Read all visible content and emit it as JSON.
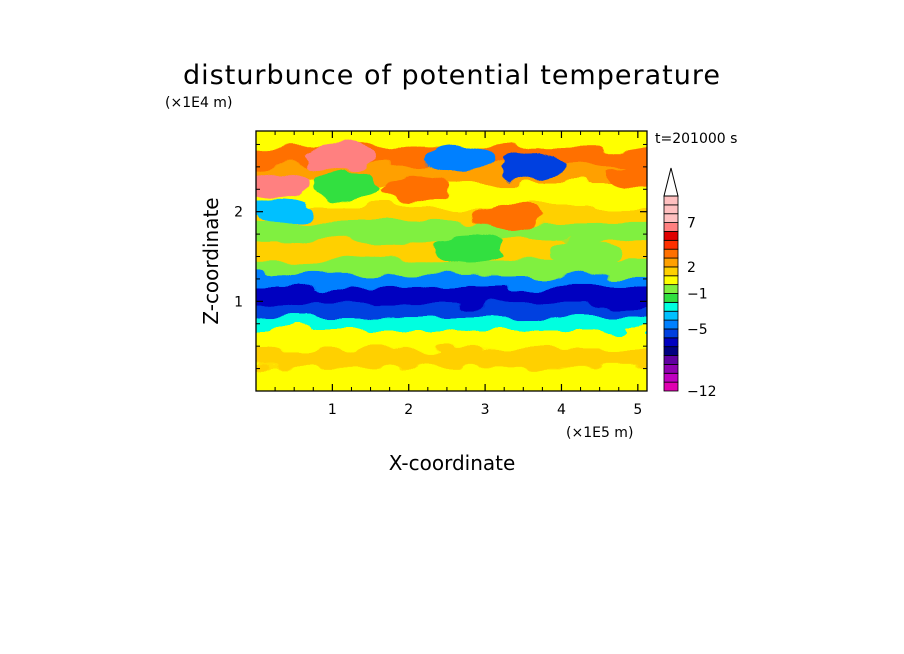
{
  "chart_data": {
    "type": "heatmap",
    "title": "disturbunce of potential temperature",
    "annotation": "t=201000 s",
    "xlabel": "X-coordinate",
    "ylabel": "Z-coordinate",
    "x_unit": "(x1E5 m)",
    "y_unit": "(x1E4 m)",
    "xlim": [
      0,
      5.12
    ],
    "ylim": [
      0,
      2.9
    ],
    "xticks": [
      "1",
      "2",
      "3",
      "4",
      "5"
    ],
    "xtick_values": [
      1,
      2,
      3,
      4,
      5
    ],
    "yticks": [
      "1",
      "2"
    ],
    "ytick_values": [
      1,
      2
    ],
    "colorbar": {
      "levels": [
        -12,
        -11,
        -10,
        -9,
        -8,
        -7,
        -6,
        -5,
        -4,
        -3,
        -2,
        -1,
        0,
        1,
        2,
        3,
        4,
        5,
        6,
        7,
        8,
        9,
        10
      ],
      "labels": [
        "-12",
        "-5",
        "-1",
        "2",
        "7"
      ],
      "label_values": [
        -12,
        -5,
        -1,
        2,
        7
      ],
      "extend": "max",
      "colors": [
        "#e000b0",
        "#c000c0",
        "#9000b0",
        "#6000a0",
        "#000080",
        "#0000c0",
        "#0040e0",
        "#0080ff",
        "#00c0ff",
        "#00ffe0",
        "#30e040",
        "#80f040",
        "#ffff00",
        "#ffd000",
        "#ffa000",
        "#ff7000",
        "#ff3000",
        "#e00000",
        "#ff8080",
        "#ffc0c0"
      ]
    },
    "field_bands": [
      {
        "z": 0.05,
        "value": 0.2
      },
      {
        "z": 0.2,
        "value": 0.5
      },
      {
        "z": 0.4,
        "value": 1.2
      },
      {
        "z": 0.6,
        "value": 0.3
      },
      {
        "z": 0.8,
        "value": -2.5
      },
      {
        "z": 0.95,
        "value": -5.5
      },
      {
        "z": 1.1,
        "value": -6.5
      },
      {
        "z": 1.28,
        "value": -4.5
      },
      {
        "z": 1.42,
        "value": -0.5
      },
      {
        "z": 1.6,
        "value": 1.2
      },
      {
        "z": 1.8,
        "value": -0.3
      },
      {
        "z": 2.0,
        "value": 1.5
      },
      {
        "z": 2.2,
        "value": 0.5
      },
      {
        "z": 2.45,
        "value": 2.5
      },
      {
        "z": 2.65,
        "value": 3.0
      },
      {
        "z": 2.85,
        "value": 0.8
      }
    ],
    "field_features": [
      {
        "x": 0.25,
        "z": 2.3,
        "value": 6.5
      },
      {
        "x": 1.1,
        "z": 2.6,
        "value": 6.0
      },
      {
        "x": 3.6,
        "z": 2.5,
        "value": -5.5
      },
      {
        "x": 2.65,
        "z": 2.6,
        "value": -4.5
      },
      {
        "x": 0.3,
        "z": 2.0,
        "value": -3.5
      },
      {
        "x": 3.3,
        "z": 1.95,
        "value": 3.8
      },
      {
        "x": 5.05,
        "z": 2.4,
        "value": 3.5
      },
      {
        "x": 2.1,
        "z": 2.25,
        "value": 3.2
      },
      {
        "x": 1.2,
        "z": 2.3,
        "value": -1.5
      },
      {
        "x": 2.8,
        "z": 1.6,
        "value": -1.5
      },
      {
        "x": 4.3,
        "z": 1.55,
        "value": -1.0
      }
    ]
  }
}
